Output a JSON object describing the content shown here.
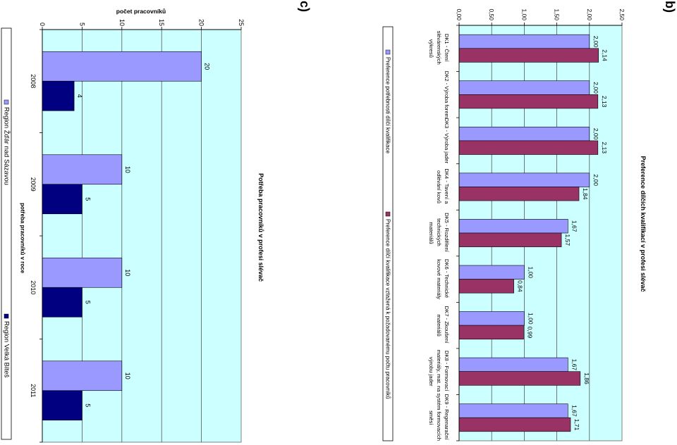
{
  "chart_data": [
    {
      "panel_label": "c)",
      "type": "bar",
      "orientation": "horizontal",
      "title": "Potřeba pracovníků v profesi slévač",
      "xlabel": "potřeba pracovníků v roce",
      "ylabel": "počet pracovníků",
      "categories": [
        "2008",
        "2009",
        "2010",
        "2011"
      ],
      "series": [
        {
          "name": "Region Žďár nad Sázavou",
          "color": "#9999FF",
          "values": [
            20,
            10,
            10,
            10
          ]
        },
        {
          "name": "Region Velká Bíteš",
          "color": "#000080",
          "values": [
            4,
            5,
            5,
            5
          ]
        }
      ],
      "ylim": [
        0,
        25
      ],
      "yticks": [
        0,
        5,
        10,
        15,
        20,
        25
      ],
      "grid": true,
      "legend": "left",
      "plot_background": "#CCFFFF"
    },
    {
      "panel_label": "b)",
      "type": "bar",
      "orientation": "horizontal",
      "title": "Preference dílčích kvalifikací v profesi slévač",
      "categories": [
        "DK1 - Čtení slévárenských výkresů",
        "DK2 - Výroba forem",
        "DK3 - Výroba jader",
        "DK4 - Tavení a odlévání kovů",
        "DK5 - Rozdělení technických materiálů",
        "DK6 - Technické kovové materiály",
        "DK7 - Zkoušení materiálů",
        "DK8 - Formovací materiály, mat. na výrobu jader",
        "DK9 - Regenarační systém formovacích směsí"
      ],
      "series": [
        {
          "name": "Preference potřebnosti dílčí kvalifikace",
          "color": "#9999FF",
          "values": [
            2.0,
            2.0,
            2.0,
            2.0,
            1.67,
            1.0,
            1.0,
            1.67,
            1.67
          ],
          "labels": [
            "2,00",
            "2,00",
            "2,00",
            "2,00",
            "1,67",
            "1,00",
            "1,00",
            "1,67",
            "1,67"
          ]
        },
        {
          "name": "Preference dílčí kvalifikace vztažená k požadovanému počtu pracovníků",
          "color": "#993366",
          "values": [
            2.14,
            2.13,
            2.13,
            1.84,
            1.57,
            0.84,
            0.99,
            1.86,
            1.71
          ],
          "labels": [
            "2,14",
            "2,13",
            "2,13",
            "1,84",
            "1,57",
            "0,84",
            "0,99",
            "1,86",
            "1,71"
          ]
        }
      ],
      "ylim": [
        0,
        2.5
      ],
      "yticks": [
        0,
        0.5,
        1,
        1.5,
        2,
        2.5
      ],
      "ytick_labels": [
        "0,00",
        "0,50",
        "1,00",
        "1,50",
        "2,00",
        "2,50"
      ],
      "grid": true,
      "legend": "left",
      "plot_background": "#CCFFFF"
    }
  ]
}
